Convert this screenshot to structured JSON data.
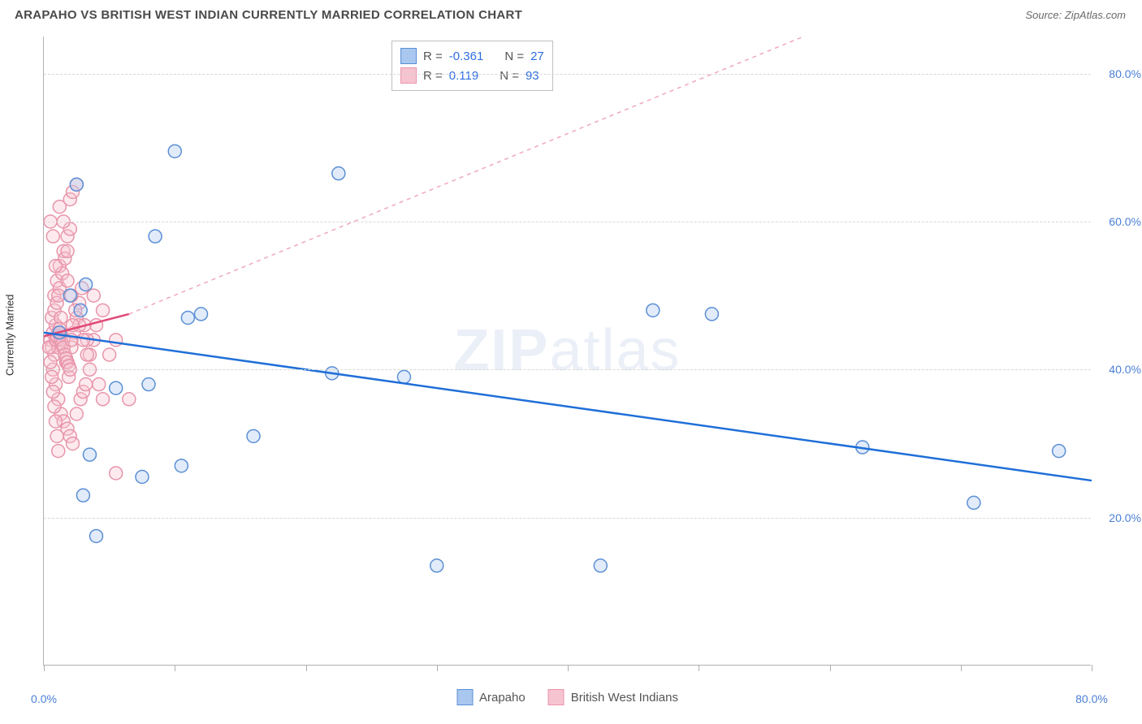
{
  "header": {
    "title": "ARAPAHO VS BRITISH WEST INDIAN CURRENTLY MARRIED CORRELATION CHART",
    "source": "Source: ZipAtlas.com"
  },
  "chart": {
    "type": "scatter",
    "y_axis_label": "Currently Married",
    "xlim": [
      0,
      80
    ],
    "ylim": [
      0,
      85
    ],
    "x_ticks": [
      0,
      10,
      20,
      30,
      40,
      50,
      60,
      70,
      80
    ],
    "x_tick_labels": {
      "0": "0.0%",
      "80": "80.0%"
    },
    "y_gridlines": [
      20,
      40,
      60,
      80
    ],
    "y_tick_labels": {
      "20": "20.0%",
      "40": "40.0%",
      "60": "60.0%",
      "80": "80.0%"
    },
    "grid_color": "#d8d8d8",
    "axis_color": "#b0b0b0",
    "background_color": "#ffffff",
    "marker_radius": 8,
    "marker_stroke_width": 1.5,
    "marker_fill_opacity": 0.35,
    "series": {
      "arapaho": {
        "label": "Arapaho",
        "stroke_color": "#5b8fd6",
        "fill_color": "#a9c7ef",
        "points": [
          [
            1.2,
            45
          ],
          [
            2.0,
            50
          ],
          [
            2.5,
            65
          ],
          [
            2.8,
            48
          ],
          [
            3.0,
            23
          ],
          [
            3.5,
            28.5
          ],
          [
            4.0,
            17.5
          ],
          [
            5.5,
            37.5
          ],
          [
            7.5,
            25.5
          ],
          [
            8.0,
            38
          ],
          [
            8.5,
            58
          ],
          [
            10.0,
            69.5
          ],
          [
            10.5,
            27
          ],
          [
            11.0,
            47
          ],
          [
            12.0,
            47.5
          ],
          [
            16.0,
            31
          ],
          [
            22.5,
            66.5
          ],
          [
            22.0,
            39.5
          ],
          [
            27.5,
            39
          ],
          [
            30.0,
            13.5
          ],
          [
            42.5,
            13.5
          ],
          [
            46.5,
            48
          ],
          [
            51.0,
            47.5
          ],
          [
            62.5,
            29.5
          ],
          [
            71.0,
            22
          ],
          [
            77.5,
            29
          ],
          [
            3.2,
            51.5
          ]
        ],
        "trend": {
          "x1": 0,
          "y1": 45,
          "x2": 80,
          "y2": 25,
          "color": "#1f6fd8",
          "width": 2.5,
          "dash": "none"
        }
      },
      "bwi": {
        "label": "British West Indians",
        "stroke_color": "#e895aa",
        "fill_color": "#f6c4d0",
        "points": [
          [
            0.5,
            44
          ],
          [
            0.6,
            43
          ],
          [
            0.7,
            45
          ],
          [
            0.8,
            42
          ],
          [
            0.9,
            46
          ],
          [
            1.0,
            44
          ],
          [
            1.1,
            43
          ],
          [
            1.2,
            45
          ],
          [
            0.8,
            50
          ],
          [
            1.0,
            52
          ],
          [
            1.2,
            54
          ],
          [
            1.5,
            56
          ],
          [
            1.8,
            58
          ],
          [
            2.0,
            63
          ],
          [
            2.2,
            64
          ],
          [
            2.5,
            65
          ],
          [
            0.7,
            40
          ],
          [
            0.9,
            38
          ],
          [
            1.1,
            36
          ],
          [
            1.3,
            34
          ],
          [
            1.5,
            33
          ],
          [
            1.8,
            32
          ],
          [
            2.0,
            31
          ],
          [
            2.2,
            30
          ],
          [
            2.5,
            34
          ],
          [
            2.8,
            36
          ],
          [
            3.0,
            37
          ],
          [
            3.2,
            38
          ],
          [
            3.5,
            42
          ],
          [
            3.8,
            44
          ],
          [
            4.0,
            46
          ],
          [
            4.5,
            48
          ],
          [
            0.6,
            47
          ],
          [
            0.8,
            48
          ],
          [
            1.0,
            49
          ],
          [
            1.2,
            51
          ],
          [
            1.4,
            53
          ],
          [
            1.6,
            55
          ],
          [
            1.8,
            56
          ],
          [
            2.0,
            59
          ],
          [
            0.5,
            60
          ],
          [
            0.7,
            58
          ],
          [
            0.9,
            54
          ],
          [
            1.1,
            50
          ],
          [
            1.3,
            47
          ],
          [
            1.5,
            44
          ],
          [
            1.7,
            41
          ],
          [
            1.9,
            39
          ],
          [
            2.1,
            43
          ],
          [
            2.3,
            45
          ],
          [
            2.5,
            47
          ],
          [
            2.7,
            49
          ],
          [
            2.9,
            51
          ],
          [
            3.1,
            46
          ],
          [
            3.3,
            44
          ],
          [
            3.5,
            40
          ],
          [
            0.4,
            43
          ],
          [
            0.5,
            41
          ],
          [
            0.6,
            39
          ],
          [
            0.7,
            37
          ],
          [
            0.8,
            35
          ],
          [
            0.9,
            33
          ],
          [
            1.0,
            31
          ],
          [
            1.1,
            29
          ],
          [
            3.8,
            50
          ],
          [
            4.2,
            38
          ],
          [
            4.5,
            36
          ],
          [
            5.0,
            42
          ],
          [
            5.5,
            44
          ],
          [
            6.5,
            36
          ],
          [
            5.5,
            26
          ],
          [
            1.2,
            62
          ],
          [
            1.5,
            60
          ],
          [
            1.8,
            52
          ],
          [
            2.1,
            50
          ],
          [
            2.4,
            48
          ],
          [
            2.7,
            46
          ],
          [
            3.0,
            44
          ],
          [
            3.3,
            42
          ],
          [
            0.9,
            44
          ],
          [
            1.0,
            44.5
          ],
          [
            1.1,
            45
          ],
          [
            1.2,
            45.5
          ],
          [
            1.3,
            44
          ],
          [
            1.4,
            43.5
          ],
          [
            1.5,
            43
          ],
          [
            1.6,
            42
          ],
          [
            1.7,
            41.5
          ],
          [
            1.8,
            41
          ],
          [
            1.9,
            40.5
          ],
          [
            2.0,
            40
          ],
          [
            2.1,
            44
          ],
          [
            2.2,
            46
          ]
        ],
        "trend_solid": {
          "x1": 0,
          "y1": 44.5,
          "x2": 6.5,
          "y2": 47.5,
          "color": "#e04a78",
          "width": 2.5,
          "dash": "none"
        },
        "trend_dash": {
          "x1": 6.5,
          "y1": 47.5,
          "x2": 58,
          "y2": 85,
          "color": "#f0a8bc",
          "width": 1.5,
          "dash": "5,5"
        }
      }
    },
    "correlation_legend": [
      {
        "swatch_fill": "#a9c7ef",
        "swatch_stroke": "#5b8fd6",
        "r_label": "R =",
        "r": "-0.361",
        "n_label": "N =",
        "n": "27"
      },
      {
        "swatch_fill": "#f6c4d0",
        "swatch_stroke": "#e895aa",
        "r_label": "R =",
        "r": " 0.119",
        "n_label": "N =",
        "n": "93"
      }
    ],
    "bottom_legend": [
      {
        "swatch_fill": "#a9c7ef",
        "swatch_stroke": "#5b8fd6",
        "label": "Arapaho"
      },
      {
        "swatch_fill": "#f6c4d0",
        "swatch_stroke": "#e895aa",
        "label": "British West Indians"
      }
    ],
    "watermark": {
      "part1": "ZIP",
      "part2": "atlas"
    }
  }
}
